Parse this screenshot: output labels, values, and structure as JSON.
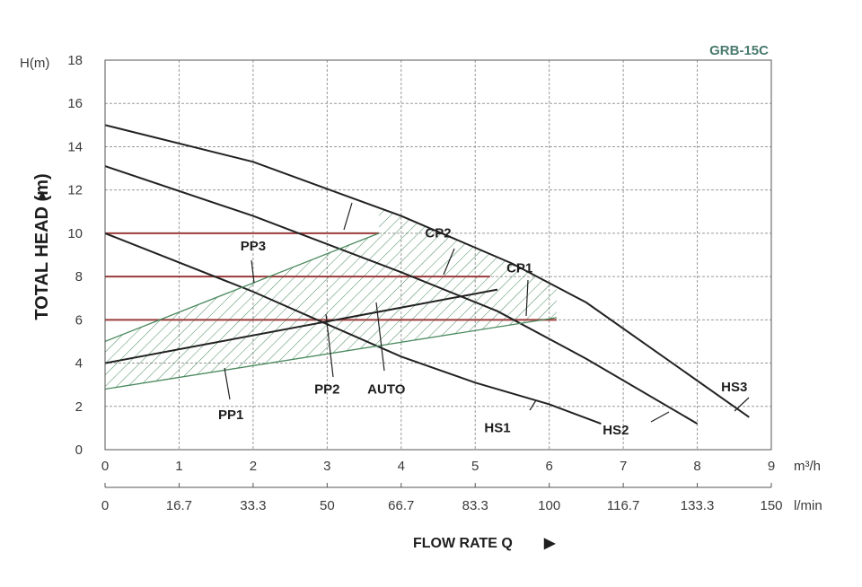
{
  "chart_data": {
    "type": "line",
    "title": "GRB-15C",
    "ylabel": "TOTAL HEAD (m)",
    "ylabel_arrow": "▲",
    "xlabel": "FLOW RATE Q",
    "xlabel_arrow": "▶",
    "y_unit": "H(m)",
    "x_unit": "m³/h",
    "x2_unit": "l/min",
    "xlim": [
      0,
      9
    ],
    "ylim": [
      0,
      18
    ],
    "x_ticks": [
      "0",
      "1",
      "2",
      "3",
      "4",
      "5",
      "6",
      "7",
      "8",
      "9"
    ],
    "y_ticks": [
      "0",
      "2",
      "4",
      "6",
      "8",
      "10",
      "12",
      "14",
      "16",
      "18"
    ],
    "x2_ticks": [
      "0",
      "16.7",
      "33.3",
      "50",
      "66.7",
      "83.3",
      "100",
      "116.7",
      "133.3",
      "150"
    ],
    "grid": true,
    "series": [
      {
        "name": "HS3",
        "x": [
          0,
          2,
          4,
          5.5,
          6.5,
          8.7
        ],
        "y": [
          15,
          13.3,
          10.8,
          8.6,
          6.8,
          1.5
        ]
      },
      {
        "name": "HS2",
        "x": [
          0,
          2,
          4,
          5.3,
          6.5,
          8
        ],
        "y": [
          13.1,
          10.8,
          8.2,
          6.4,
          4.2,
          1.2
        ]
      },
      {
        "name": "HS1",
        "x": [
          0,
          2,
          3,
          4,
          5,
          6,
          6.7
        ],
        "y": [
          10,
          7.3,
          5.8,
          4.3,
          3.1,
          2.1,
          1.2
        ]
      },
      {
        "name": "CP2",
        "x": [
          0,
          3.7
        ],
        "y": [
          10,
          10
        ]
      },
      {
        "name": "CP1",
        "x": [
          0,
          5.2
        ],
        "y": [
          8,
          8
        ]
      },
      {
        "name": "PP3",
        "x": [
          0,
          6.1
        ],
        "y": [
          6,
          6
        ]
      },
      {
        "name": "AUTO",
        "x": [
          0,
          5.3
        ],
        "y": [
          4,
          7.4
        ]
      },
      {
        "name": "PP2",
        "x": [
          0,
          3.7
        ],
        "y": [
          5,
          10
        ]
      },
      {
        "name": "PP1",
        "x": [
          0,
          6.1
        ],
        "y": [
          2.8,
          6.1
        ]
      }
    ],
    "constant_pressure_lines": [
      {
        "y": 10,
        "x_end": 3.7
      },
      {
        "y": 8,
        "x_end": 5.2
      },
      {
        "y": 6,
        "x_end": 6.1
      }
    ],
    "labels": [
      {
        "text": "PP3",
        "x": 2.0,
        "y": 9.2
      },
      {
        "text": "CP2",
        "x": 4.5,
        "y": 9.8
      },
      {
        "text": "CP1",
        "x": 5.6,
        "y": 8.2
      },
      {
        "text": "PP2",
        "x": 3.0,
        "y": 2.6
      },
      {
        "text": "AUTO",
        "x": 3.8,
        "y": 2.6
      },
      {
        "text": "PP1",
        "x": 1.7,
        "y": 1.4
      },
      {
        "text": "HS1",
        "x": 5.3,
        "y": 0.8
      },
      {
        "text": "HS2",
        "x": 6.9,
        "y": 0.7
      },
      {
        "text": "HS3",
        "x": 8.5,
        "y": 2.7
      }
    ],
    "colors": {
      "curve": "#222222",
      "constant_line": "#9b3b3b",
      "hatch": "#4b8a5e",
      "grid": "#9a9a9a",
      "model": "#4a7a6e"
    }
  }
}
